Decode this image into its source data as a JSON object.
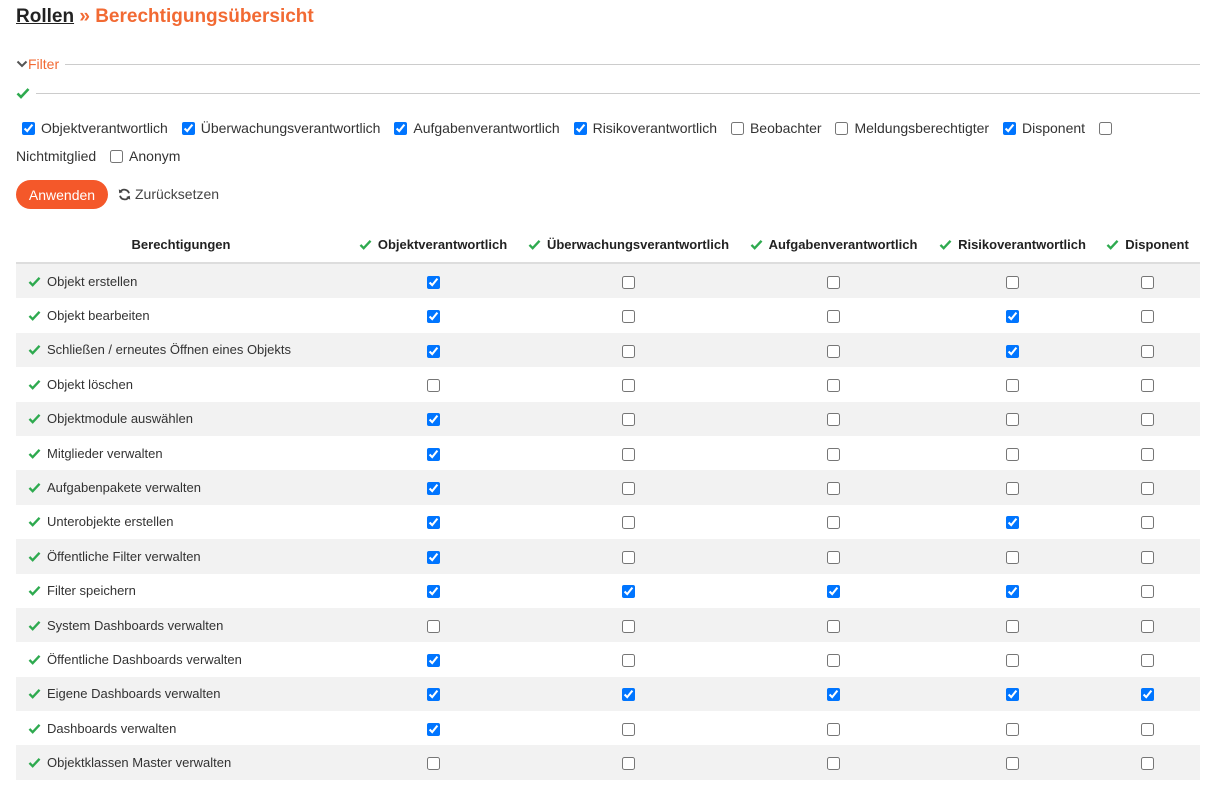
{
  "header": {
    "parent": "Rollen",
    "separator": "»",
    "title": "Berechtigungsübersicht"
  },
  "filter": {
    "legend": "Filter",
    "options": [
      {
        "label": "Objektverantwortlich",
        "checked": true
      },
      {
        "label": "Überwachungsverantwortlich",
        "checked": true
      },
      {
        "label": "Aufgabenverantwortlich",
        "checked": true
      },
      {
        "label": "Risikoverantwortlich",
        "checked": true
      },
      {
        "label": "Beobachter",
        "checked": false
      },
      {
        "label": "Meldungsberechtigter",
        "checked": false
      },
      {
        "label": "Disponent",
        "checked": true
      },
      {
        "label": "Nichtmitglied",
        "checked": false
      },
      {
        "label": "Anonym",
        "checked": false
      }
    ],
    "apply": "Anwenden",
    "reset": "Zurücksetzen"
  },
  "table": {
    "columns": [
      "Berechtigungen",
      "Objektverantwortlich",
      "Überwachungsverantwortlich",
      "Aufgabenverantwortlich",
      "Risikoverantwortlich",
      "Disponent"
    ],
    "rows": [
      {
        "label": "Objekt erstellen",
        "values": [
          true,
          false,
          false,
          false,
          false
        ]
      },
      {
        "label": "Objekt bearbeiten",
        "values": [
          true,
          false,
          false,
          true,
          false
        ]
      },
      {
        "label": "Schließen / erneutes Öffnen eines Objekts",
        "values": [
          true,
          false,
          false,
          true,
          false
        ]
      },
      {
        "label": "Objekt löschen",
        "values": [
          false,
          false,
          false,
          false,
          false
        ]
      },
      {
        "label": "Objektmodule auswählen",
        "values": [
          true,
          false,
          false,
          false,
          false
        ]
      },
      {
        "label": "Mitglieder verwalten",
        "values": [
          true,
          false,
          false,
          false,
          false
        ]
      },
      {
        "label": "Aufgabenpakete verwalten",
        "values": [
          true,
          false,
          false,
          false,
          false
        ]
      },
      {
        "label": "Unterobjekte erstellen",
        "values": [
          true,
          false,
          false,
          true,
          false
        ]
      },
      {
        "label": "Öffentliche Filter verwalten",
        "values": [
          true,
          false,
          false,
          false,
          false
        ]
      },
      {
        "label": "Filter speichern",
        "values": [
          true,
          true,
          true,
          true,
          false
        ]
      },
      {
        "label": "System Dashboards verwalten",
        "values": [
          false,
          false,
          false,
          false,
          false
        ]
      },
      {
        "label": "Öffentliche Dashboards verwalten",
        "values": [
          true,
          false,
          false,
          false,
          false
        ]
      },
      {
        "label": "Eigene Dashboards verwalten",
        "values": [
          true,
          true,
          true,
          true,
          true
        ]
      },
      {
        "label": "Dashboards verwalten",
        "values": [
          true,
          false,
          false,
          false,
          false
        ]
      },
      {
        "label": "Objektklassen Master verwalten",
        "values": [
          false,
          false,
          false,
          false,
          false
        ]
      }
    ]
  }
}
